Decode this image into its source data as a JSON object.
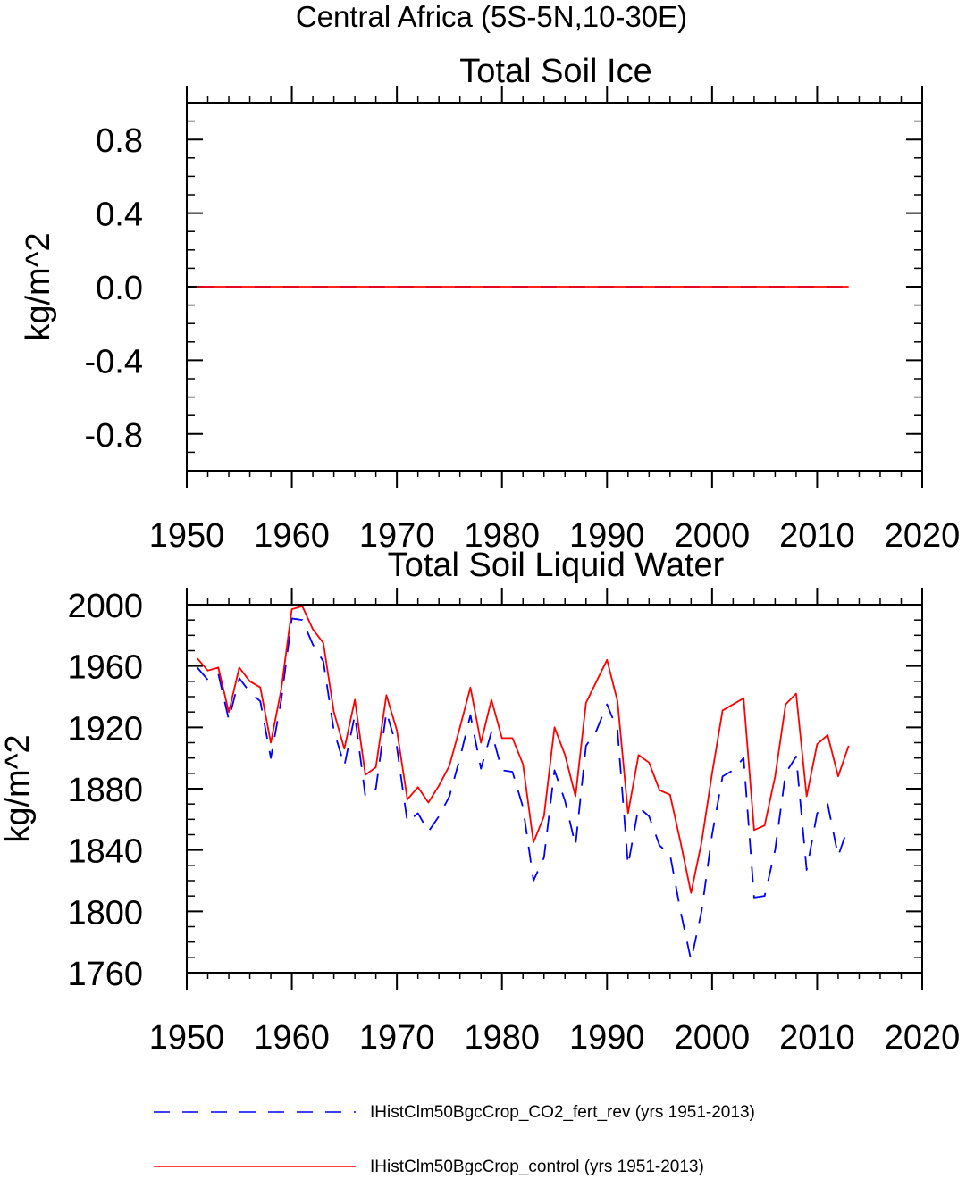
{
  "figure": {
    "suptitle": "Central Africa (5S-5N,10-30E)"
  },
  "legend": {
    "placement": "bottom-center",
    "entries": [
      {
        "label": "IHistClm50BgcCrop_CO2_fert_rev (yrs 1951-2013)",
        "color": "#0000ff",
        "style": "dashed"
      },
      {
        "label": "IHistClm50BgcCrop_control (yrs 1951-2013)",
        "color": "#ff0000",
        "style": "solid"
      }
    ]
  },
  "chart_data": [
    {
      "type": "line",
      "title": "Total Soil Ice",
      "xlabel": "",
      "ylabel": "kg/m^2",
      "xlim": [
        1950,
        2020
      ],
      "ylim": [
        -1.0,
        1.0
      ],
      "xticks": [
        1950,
        1960,
        1970,
        1980,
        1990,
        2000,
        2010,
        2020
      ],
      "yticks": [
        -0.8,
        -0.4,
        0.0,
        0.4,
        0.8
      ],
      "ytick_labels": [
        "-0.8",
        "-0.4",
        "0.0",
        "0.4",
        "0.8"
      ],
      "grid": false,
      "x_start": 1951,
      "series": [
        {
          "name": "IHistClm50BgcCrop_CO2_fert_rev (yrs 1951-2013)",
          "color": "#0000ff",
          "style": "dashed",
          "values": [
            0,
            0,
            0,
            0,
            0,
            0,
            0,
            0,
            0,
            0,
            0,
            0,
            0,
            0,
            0,
            0,
            0,
            0,
            0,
            0,
            0,
            0,
            0,
            0,
            0,
            0,
            0,
            0,
            0,
            0,
            0,
            0,
            0,
            0,
            0,
            0,
            0,
            0,
            0,
            0,
            0,
            0,
            0,
            0,
            0,
            0,
            0,
            0,
            0,
            0,
            0,
            0,
            0,
            0,
            0,
            0,
            0,
            0,
            0,
            0,
            0,
            0,
            0
          ]
        },
        {
          "name": "IHistClm50BgcCrop_control (yrs 1951-2013)",
          "color": "#ff0000",
          "style": "solid",
          "values": [
            0,
            0,
            0,
            0,
            0,
            0,
            0,
            0,
            0,
            0,
            0,
            0,
            0,
            0,
            0,
            0,
            0,
            0,
            0,
            0,
            0,
            0,
            0,
            0,
            0,
            0,
            0,
            0,
            0,
            0,
            0,
            0,
            0,
            0,
            0,
            0,
            0,
            0,
            0,
            0,
            0,
            0,
            0,
            0,
            0,
            0,
            0,
            0,
            0,
            0,
            0,
            0,
            0,
            0,
            0,
            0,
            0,
            0,
            0,
            0,
            0,
            0,
            0
          ]
        }
      ]
    },
    {
      "type": "line",
      "title": "Total Soil Liquid Water",
      "xlabel": "",
      "ylabel": "kg/m^2",
      "xlim": [
        1950,
        2020
      ],
      "ylim": [
        1760,
        2000
      ],
      "xticks": [
        1950,
        1960,
        1970,
        1980,
        1990,
        2000,
        2010,
        2020
      ],
      "yticks": [
        1760,
        1800,
        1840,
        1880,
        1920,
        1960,
        2000
      ],
      "ytick_labels": [
        "1760",
        "1800",
        "1840",
        "1880",
        "1920",
        "1960",
        "2000"
      ],
      "grid": false,
      "x_start": 1951,
      "series": [
        {
          "name": "IHistClm50BgcCrop_CO2_fert_rev (yrs 1951-2013)",
          "color": "#0000ff",
          "style": "dashed",
          "values": [
            1959,
            1951,
            1955,
            1925,
            1952,
            1943,
            1937,
            1900,
            1938,
            1991,
            1990,
            1974,
            1963,
            1918,
            1895,
            1928,
            1875,
            1880,
            1930,
            1907,
            1858,
            1864,
            1852,
            1862,
            1875,
            1900,
            1928,
            1893,
            1917,
            1892,
            1891,
            1868,
            1820,
            1835,
            1892,
            1872,
            1843,
            1908,
            1918,
            1935,
            1918,
            1830,
            1868,
            1862,
            1843,
            1837,
            1800,
            1768,
            1800,
            1850,
            1888,
            1892,
            1900,
            1809,
            1810,
            1840,
            1890,
            1901,
            1827,
            1864,
            1870,
            1836,
            1856
          ]
        },
        {
          "name": "IHistClm50BgcCrop_control (yrs 1951-2013)",
          "color": "#ff0000",
          "style": "solid",
          "values": [
            1965,
            1957,
            1959,
            1930,
            1959,
            1950,
            1946,
            1910,
            1945,
            1997,
            1999,
            1984,
            1975,
            1930,
            1906,
            1938,
            1889,
            1894,
            1941,
            1918,
            1873,
            1881,
            1871,
            1882,
            1895,
            1920,
            1946,
            1910,
            1938,
            1913,
            1913,
            1896,
            1845,
            1862,
            1920,
            1902,
            1875,
            1936,
            1950,
            1964,
            1937,
            1864,
            1902,
            1897,
            1879,
            1876,
            1845,
            1812,
            1845,
            1890,
            1931,
            1935,
            1939,
            1853,
            1856,
            1888,
            1935,
            1942,
            1875,
            1909,
            1915,
            1888,
            1908
          ]
        }
      ]
    }
  ]
}
